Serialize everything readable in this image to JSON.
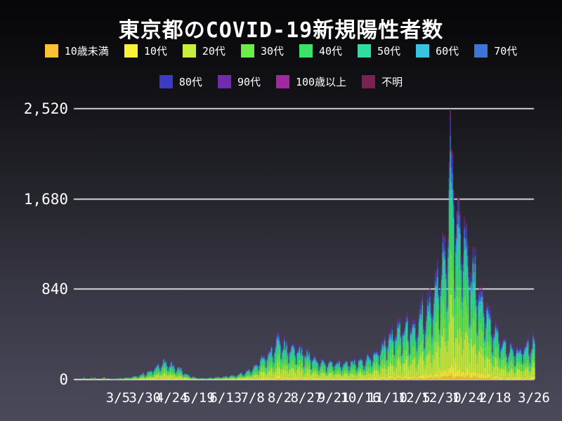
{
  "page": {
    "background_top": "#060608",
    "background_bottom": "#4b4a5b",
    "text_color": "#ffffff",
    "grid_color": "#ffffff"
  },
  "chart_data": {
    "type": "bar",
    "stacked": true,
    "title": "東京都のCOVID-19新規陽性者数",
    "xlabel": "",
    "ylabel": "",
    "grid": "horizontal-white-lines",
    "legend_position": "top-two-rows",
    "ylim": [
      0,
      2520
    ],
    "yticks": [
      {
        "value": 0,
        "label": "0"
      },
      {
        "value": 840,
        "label": "840"
      },
      {
        "value": 1680,
        "label": "1,680"
      },
      {
        "value": 2520,
        "label": "2,520"
      }
    ],
    "n_days": 428,
    "x_unit": "daily bars, first wave through third wave",
    "xticks": [
      {
        "day": 41,
        "label": "3/5"
      },
      {
        "day": 66,
        "label": "3/30"
      },
      {
        "day": 91,
        "label": "4/24"
      },
      {
        "day": 116,
        "label": "5/19"
      },
      {
        "day": 141,
        "label": "6/13"
      },
      {
        "day": 166,
        "label": "7/8"
      },
      {
        "day": 191,
        "label": "8/2"
      },
      {
        "day": 216,
        "label": "8/27"
      },
      {
        "day": 241,
        "label": "9/21"
      },
      {
        "day": 266,
        "label": "10/16"
      },
      {
        "day": 291,
        "label": "11/10"
      },
      {
        "day": 316,
        "label": "12/5"
      },
      {
        "day": 341,
        "label": "12/30"
      },
      {
        "day": 366,
        "label": "1/24"
      },
      {
        "day": 391,
        "label": "2/18"
      },
      {
        "day": 427,
        "label": "3/26"
      }
    ],
    "age_groups": [
      {
        "label": "10歳未満",
        "color": "#fdc131",
        "share": 0.02
      },
      {
        "label": "10代",
        "color": "#faf236",
        "share": 0.05
      },
      {
        "label": "20代",
        "color": "#c8ef3c",
        "share": 0.245
      },
      {
        "label": "30代",
        "color": "#6ceb4b",
        "share": 0.2
      },
      {
        "label": "40代",
        "color": "#3ae26a",
        "share": 0.15
      },
      {
        "label": "50代",
        "color": "#2edda0",
        "share": 0.12
      },
      {
        "label": "60代",
        "color": "#39c3de",
        "share": 0.08
      },
      {
        "label": "70代",
        "color": "#3d75d7",
        "share": 0.055
      },
      {
        "label": "80代",
        "color": "#3d3ac6",
        "share": 0.04
      },
      {
        "label": "90代",
        "color": "#6f2cab",
        "share": 0.02
      },
      {
        "label": "100歳以上",
        "color": "#a327a3",
        "share": 0.003
      },
      {
        "label": "不明",
        "color": "#7d2250",
        "share": 0.017
      }
    ],
    "peak": {
      "day": 349,
      "value": 2520
    },
    "daily_total_anchors": [
      [
        0,
        1
      ],
      [
        14,
        1
      ],
      [
        25,
        2
      ],
      [
        33,
        3
      ],
      [
        38,
        8
      ],
      [
        45,
        16
      ],
      [
        52,
        25
      ],
      [
        60,
        45
      ],
      [
        66,
        70
      ],
      [
        72,
        95
      ],
      [
        78,
        140
      ],
      [
        84,
        185
      ],
      [
        88,
        165
      ],
      [
        93,
        140
      ],
      [
        97,
        120
      ],
      [
        101,
        85
      ],
      [
        106,
        45
      ],
      [
        111,
        25
      ],
      [
        116,
        15
      ],
      [
        122,
        14
      ],
      [
        128,
        20
      ],
      [
        134,
        27
      ],
      [
        140,
        33
      ],
      [
        146,
        40
      ],
      [
        152,
        50
      ],
      [
        158,
        75
      ],
      [
        163,
        105
      ],
      [
        168,
        140
      ],
      [
        173,
        200
      ],
      [
        178,
        250
      ],
      [
        183,
        300
      ],
      [
        188,
        390
      ],
      [
        190,
        430
      ],
      [
        193,
        370
      ],
      [
        197,
        320
      ],
      [
        202,
        340
      ],
      [
        207,
        330
      ],
      [
        212,
        290
      ],
      [
        217,
        260
      ],
      [
        222,
        215
      ],
      [
        227,
        190
      ],
      [
        232,
        175
      ],
      [
        237,
        168
      ],
      [
        243,
        178
      ],
      [
        249,
        182
      ],
      [
        255,
        172
      ],
      [
        261,
        186
      ],
      [
        267,
        200
      ],
      [
        273,
        225
      ],
      [
        279,
        265
      ],
      [
        285,
        320
      ],
      [
        291,
        390
      ],
      [
        296,
        470
      ],
      [
        301,
        515
      ],
      [
        306,
        535
      ],
      [
        311,
        555
      ],
      [
        316,
        580
      ],
      [
        321,
        640
      ],
      [
        326,
        740
      ],
      [
        331,
        840
      ],
      [
        336,
        920
      ],
      [
        340,
        1080
      ],
      [
        343,
        1250
      ],
      [
        346,
        1500
      ],
      [
        348,
        2000
      ],
      [
        349,
        2450
      ],
      [
        350,
        2250
      ],
      [
        351,
        2050
      ],
      [
        353,
        1850
      ],
      [
        356,
        1700
      ],
      [
        359,
        1580
      ],
      [
        362,
        1450
      ],
      [
        366,
        1280
      ],
      [
        370,
        1120
      ],
      [
        374,
        980
      ],
      [
        378,
        840
      ],
      [
        382,
        720
      ],
      [
        386,
        610
      ],
      [
        390,
        500
      ],
      [
        394,
        430
      ],
      [
        398,
        380
      ],
      [
        402,
        345
      ],
      [
        406,
        315
      ],
      [
        410,
        300
      ],
      [
        414,
        305
      ],
      [
        418,
        320
      ],
      [
        422,
        345
      ],
      [
        426,
        375
      ],
      [
        427,
        385
      ]
    ],
    "weekday_factors": [
      1.0,
      1.08,
      0.82,
      0.52,
      0.78,
      0.95,
      1.06
    ]
  }
}
